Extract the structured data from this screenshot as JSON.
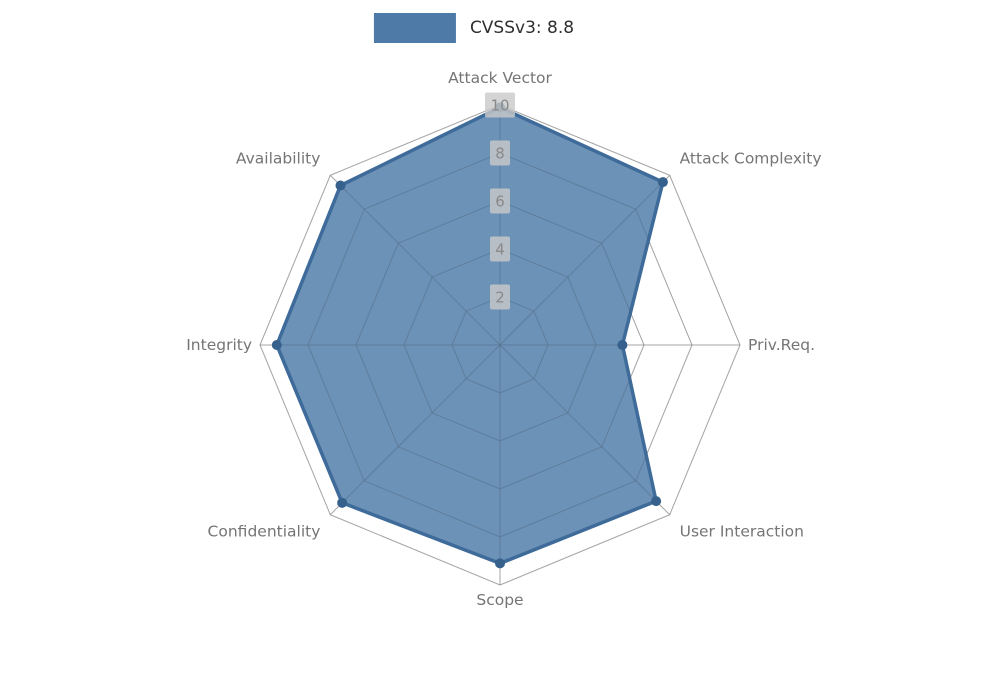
{
  "legend": {
    "label": "CVSSv3: 8.8",
    "swatch_color": "#4d7aa7"
  },
  "chart_data": {
    "type": "radar",
    "title": "CVSSv3: 8.8",
    "categories": [
      "Attack Vector",
      "Attack Complexity",
      "Priv.Req.",
      "User Interaction",
      "Scope",
      "Confidentiality",
      "Integrity",
      "Availability"
    ],
    "series": [
      {
        "name": "CVSSv3: 8.8",
        "values": [
          9.9,
          9.6,
          5.1,
          9.2,
          9.1,
          9.3,
          9.3,
          9.4
        ]
      }
    ],
    "ticks": [
      2,
      4,
      6,
      8,
      10
    ],
    "rmax": 10,
    "grid": true,
    "legend_position": "top",
    "colors": {
      "series_fill": "#4d7aa7",
      "series_fill_opacity": 0.82,
      "series_stroke": "#3e6b99",
      "marker": "#35618c",
      "grid_line": "#9a9a9a",
      "axis_label": "#757575",
      "tick_text": "#8a8a8a",
      "tick_box": "#c9c9c9"
    }
  }
}
